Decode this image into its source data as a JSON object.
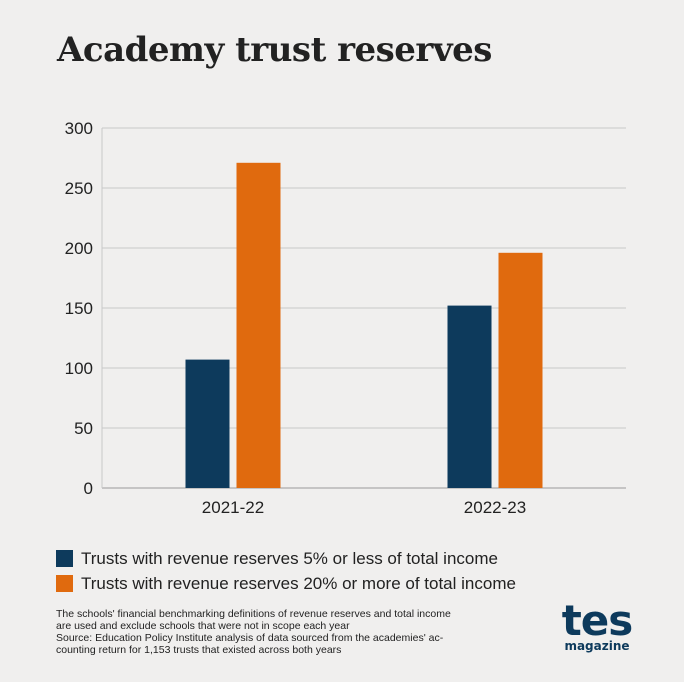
{
  "chart_data": {
    "type": "bar",
    "title": "Academy trust reserves",
    "categories": [
      "2021-22",
      "2022-23"
    ],
    "series": [
      {
        "name": "Trusts with revenue reserves 5% or less of total income",
        "values": [
          107,
          152
        ],
        "color": "#0d3a5c"
      },
      {
        "name": "Trusts with revenue reserves 20% or more of total income",
        "values": [
          271,
          196
        ],
        "color": "#e06a0e"
      }
    ],
    "yticks": [
      "0",
      "50",
      "100",
      "150",
      "200",
      "250",
      "300"
    ],
    "ylim": [
      0,
      300
    ],
    "grid": true,
    "legend_position": "bottom-left"
  },
  "notes": {
    "line1": "The schools' financial benchmarking definitions of revenue reserves and total income",
    "line2": "are used and exclude schools that were not in scope each year",
    "line3": "Source: Education Policy Institute analysis of data sourced from the academies' ac-",
    "line4": "counting return for 1,153 trusts that existed across both years"
  },
  "logo": {
    "main": "tes",
    "sub": "magazine"
  }
}
